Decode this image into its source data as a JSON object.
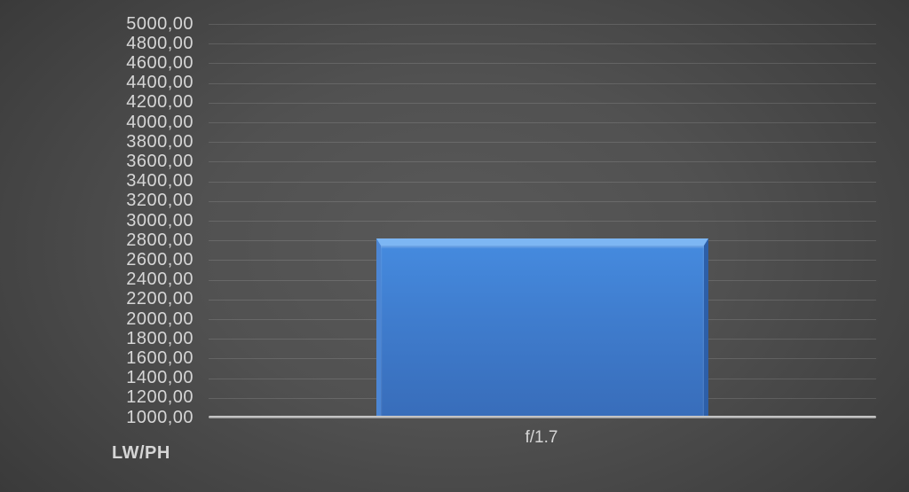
{
  "chart_data": {
    "type": "bar",
    "title": "",
    "categories": [
      "f/1.7"
    ],
    "values": [
      2815
    ],
    "xlabel": "",
    "ylabel": "LW/PH",
    "ylim": [
      1000,
      5000
    ],
    "ytick_step": 200,
    "ytick_labels": [
      "5000,00",
      "4800,00",
      "4600,00",
      "4400,00",
      "4200,00",
      "4000,00",
      "3800,00",
      "3600,00",
      "3400,00",
      "3200,00",
      "3000,00",
      "2800,00",
      "2600,00",
      "2400,00",
      "2200,00",
      "2000,00",
      "1800,00",
      "1600,00",
      "1400,00",
      "1200,00",
      "1000,00"
    ],
    "grid": true,
    "legend": false,
    "colors": {
      "bar_body": "#3f7ccd",
      "bar_body_top": "#458ade",
      "bar_body_bottom": "#386dba",
      "bar_bevel_top": "#7db6f3",
      "bar_bevel_left": "#4c86d4",
      "bar_bevel_right": "#2d5fa8",
      "axis_line": "#bdbdbd",
      "gridline": "rgba(255,255,255,0.13)",
      "text": "#d6d6d6",
      "background_center": "#595959",
      "background_edge": "#262626"
    }
  }
}
